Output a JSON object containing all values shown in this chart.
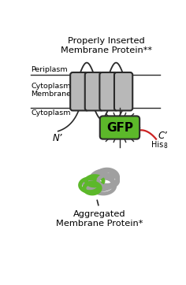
{
  "title_top": "Properly Inserted\nMembrane Protein**",
  "title_bottom": "Aggregated\nMembrane Protein*",
  "label_periplasm": "Periplasm",
  "label_cytoplasmic": "Cytoplasmic\nMembrane",
  "label_cytoplasm": "Cytoplasm",
  "label_N": "N’",
  "label_C": "C’",
  "label_his": "His",
  "label_his_sub": "8",
  "label_GFP": "GFP",
  "membrane_color": "#b8b8b8",
  "membrane_edge_color": "#2a2a2a",
  "gfp_fill": "#5cb82a",
  "gfp_edge": "#2a2a2a",
  "line_color": "#2a2a2a",
  "red_color": "#cc2222",
  "gray_loop": "#a0a0a0",
  "green_loop": "#5cb82a",
  "background": "#ffffff",
  "fig_width": 2.36,
  "fig_height": 3.62,
  "dpi": 100
}
